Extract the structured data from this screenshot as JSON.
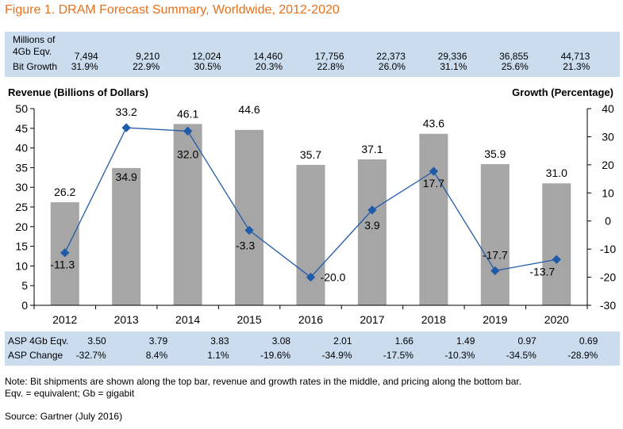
{
  "title": "Figure 1. DRAM Forecast Summary, Worldwide, 2012-2020",
  "top_band": {
    "label_line1": "Millions of",
    "label_line2": "4Gb Eqv.",
    "label_line3": "Bit Growth",
    "units": [
      "7,494",
      "9,210",
      "12,024",
      "14,460",
      "17,756",
      "22,373",
      "29,336",
      "36,855",
      "44,713"
    ],
    "growth": [
      "31.9%",
      "22.9%",
      "30.5%",
      "20.3%",
      "22.8%",
      "26.0%",
      "31.1%",
      "25.6%",
      "21.3%"
    ]
  },
  "bottom_band": {
    "label_line1": "ASP 4Gb Eqv.",
    "label_line2": "ASP Change",
    "asp": [
      "3.50",
      "3.79",
      "3.83",
      "3.08",
      "2.01",
      "1.66",
      "1.49",
      "0.97",
      "0.69"
    ],
    "change": [
      "-32.7%",
      "8.4%",
      "1.1%",
      "-19.6%",
      "-34.9%",
      "-17.5%",
      "-10.3%",
      "-34.5%",
      "-28.9%"
    ]
  },
  "chart_data": {
    "type": "bar",
    "categories": [
      "2012",
      "2013",
      "2014",
      "2015",
      "2016",
      "2017",
      "2018",
      "2019",
      "2020"
    ],
    "series": [
      {
        "type": "bar",
        "axis": "left",
        "values": [
          26.2,
          34.9,
          46.1,
          44.6,
          35.7,
          37.1,
          43.6,
          35.9,
          31.0
        ],
        "labels": [
          "26.2",
          "34.9",
          "46.1",
          "44.6",
          "35.7",
          "37.1",
          "43.6",
          "35.9",
          "31.0"
        ]
      },
      {
        "type": "line",
        "axis": "right",
        "values": [
          -11.3,
          33.2,
          32.0,
          -3.3,
          -20.0,
          3.9,
          17.7,
          -17.7,
          -13.7
        ],
        "labels": [
          "-11.3",
          "33.2",
          "32.0",
          "-3.3",
          "-20.0",
          "3.9",
          "17.7",
          "-17.7",
          "-13.7"
        ]
      }
    ],
    "ylabel_left": "Revenue (Billions of Dollars)",
    "ylabel_right": "Growth (Percentage)",
    "ylim_left": [
      0,
      50
    ],
    "ylim_right": [
      -30,
      40
    ],
    "left_ticks": [
      "0",
      "5",
      "10",
      "15",
      "20",
      "25",
      "30",
      "35",
      "40",
      "45",
      "50"
    ],
    "right_ticks": [
      "-30",
      "-20",
      "-10",
      "0",
      "10",
      "20",
      "30",
      "40"
    ],
    "grid": false,
    "colors": {
      "bar": "#a6a6a6",
      "line": "#1f5ba8",
      "marker": "#1f5ba8"
    }
  },
  "note_line1": "Note: Bit shipments are shown along the top bar, revenue and growth rates in the middle, and pricing along the bottom bar.",
  "note_line2": "Eqv. = equivalent; Gb = gigabit",
  "source": "Source: Gartner (July 2016)"
}
